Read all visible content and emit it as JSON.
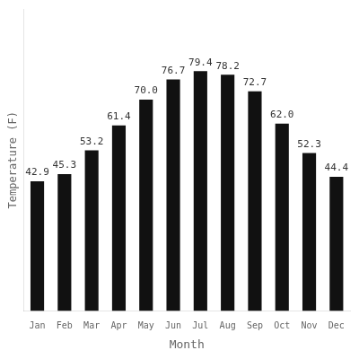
{
  "chart_data": {
    "type": "bar",
    "x_label": "Month",
    "y_label": "Temperature (F)",
    "categories": [
      "Jan",
      "Feb",
      "Mar",
      "Apr",
      "May",
      "Jun",
      "Jul",
      "Aug",
      "Sep",
      "Oct",
      "Nov",
      "Dec"
    ],
    "values": [
      42.9,
      45.3,
      53.2,
      61.4,
      70.0,
      76.7,
      79.4,
      78.2,
      72.7,
      62.0,
      52.3,
      44.4
    ],
    "value_labels": [
      "42.9",
      "45.3",
      "53.2",
      "61.4",
      "70.0",
      "76.7",
      "79.4",
      "78.2",
      "72.7",
      "62.0",
      "52.3",
      "44.4"
    ],
    "data_labels": true,
    "color": "#111111",
    "ylim": [
      0,
      100
    ],
    "tick_labels": "x",
    "grid": false
  }
}
